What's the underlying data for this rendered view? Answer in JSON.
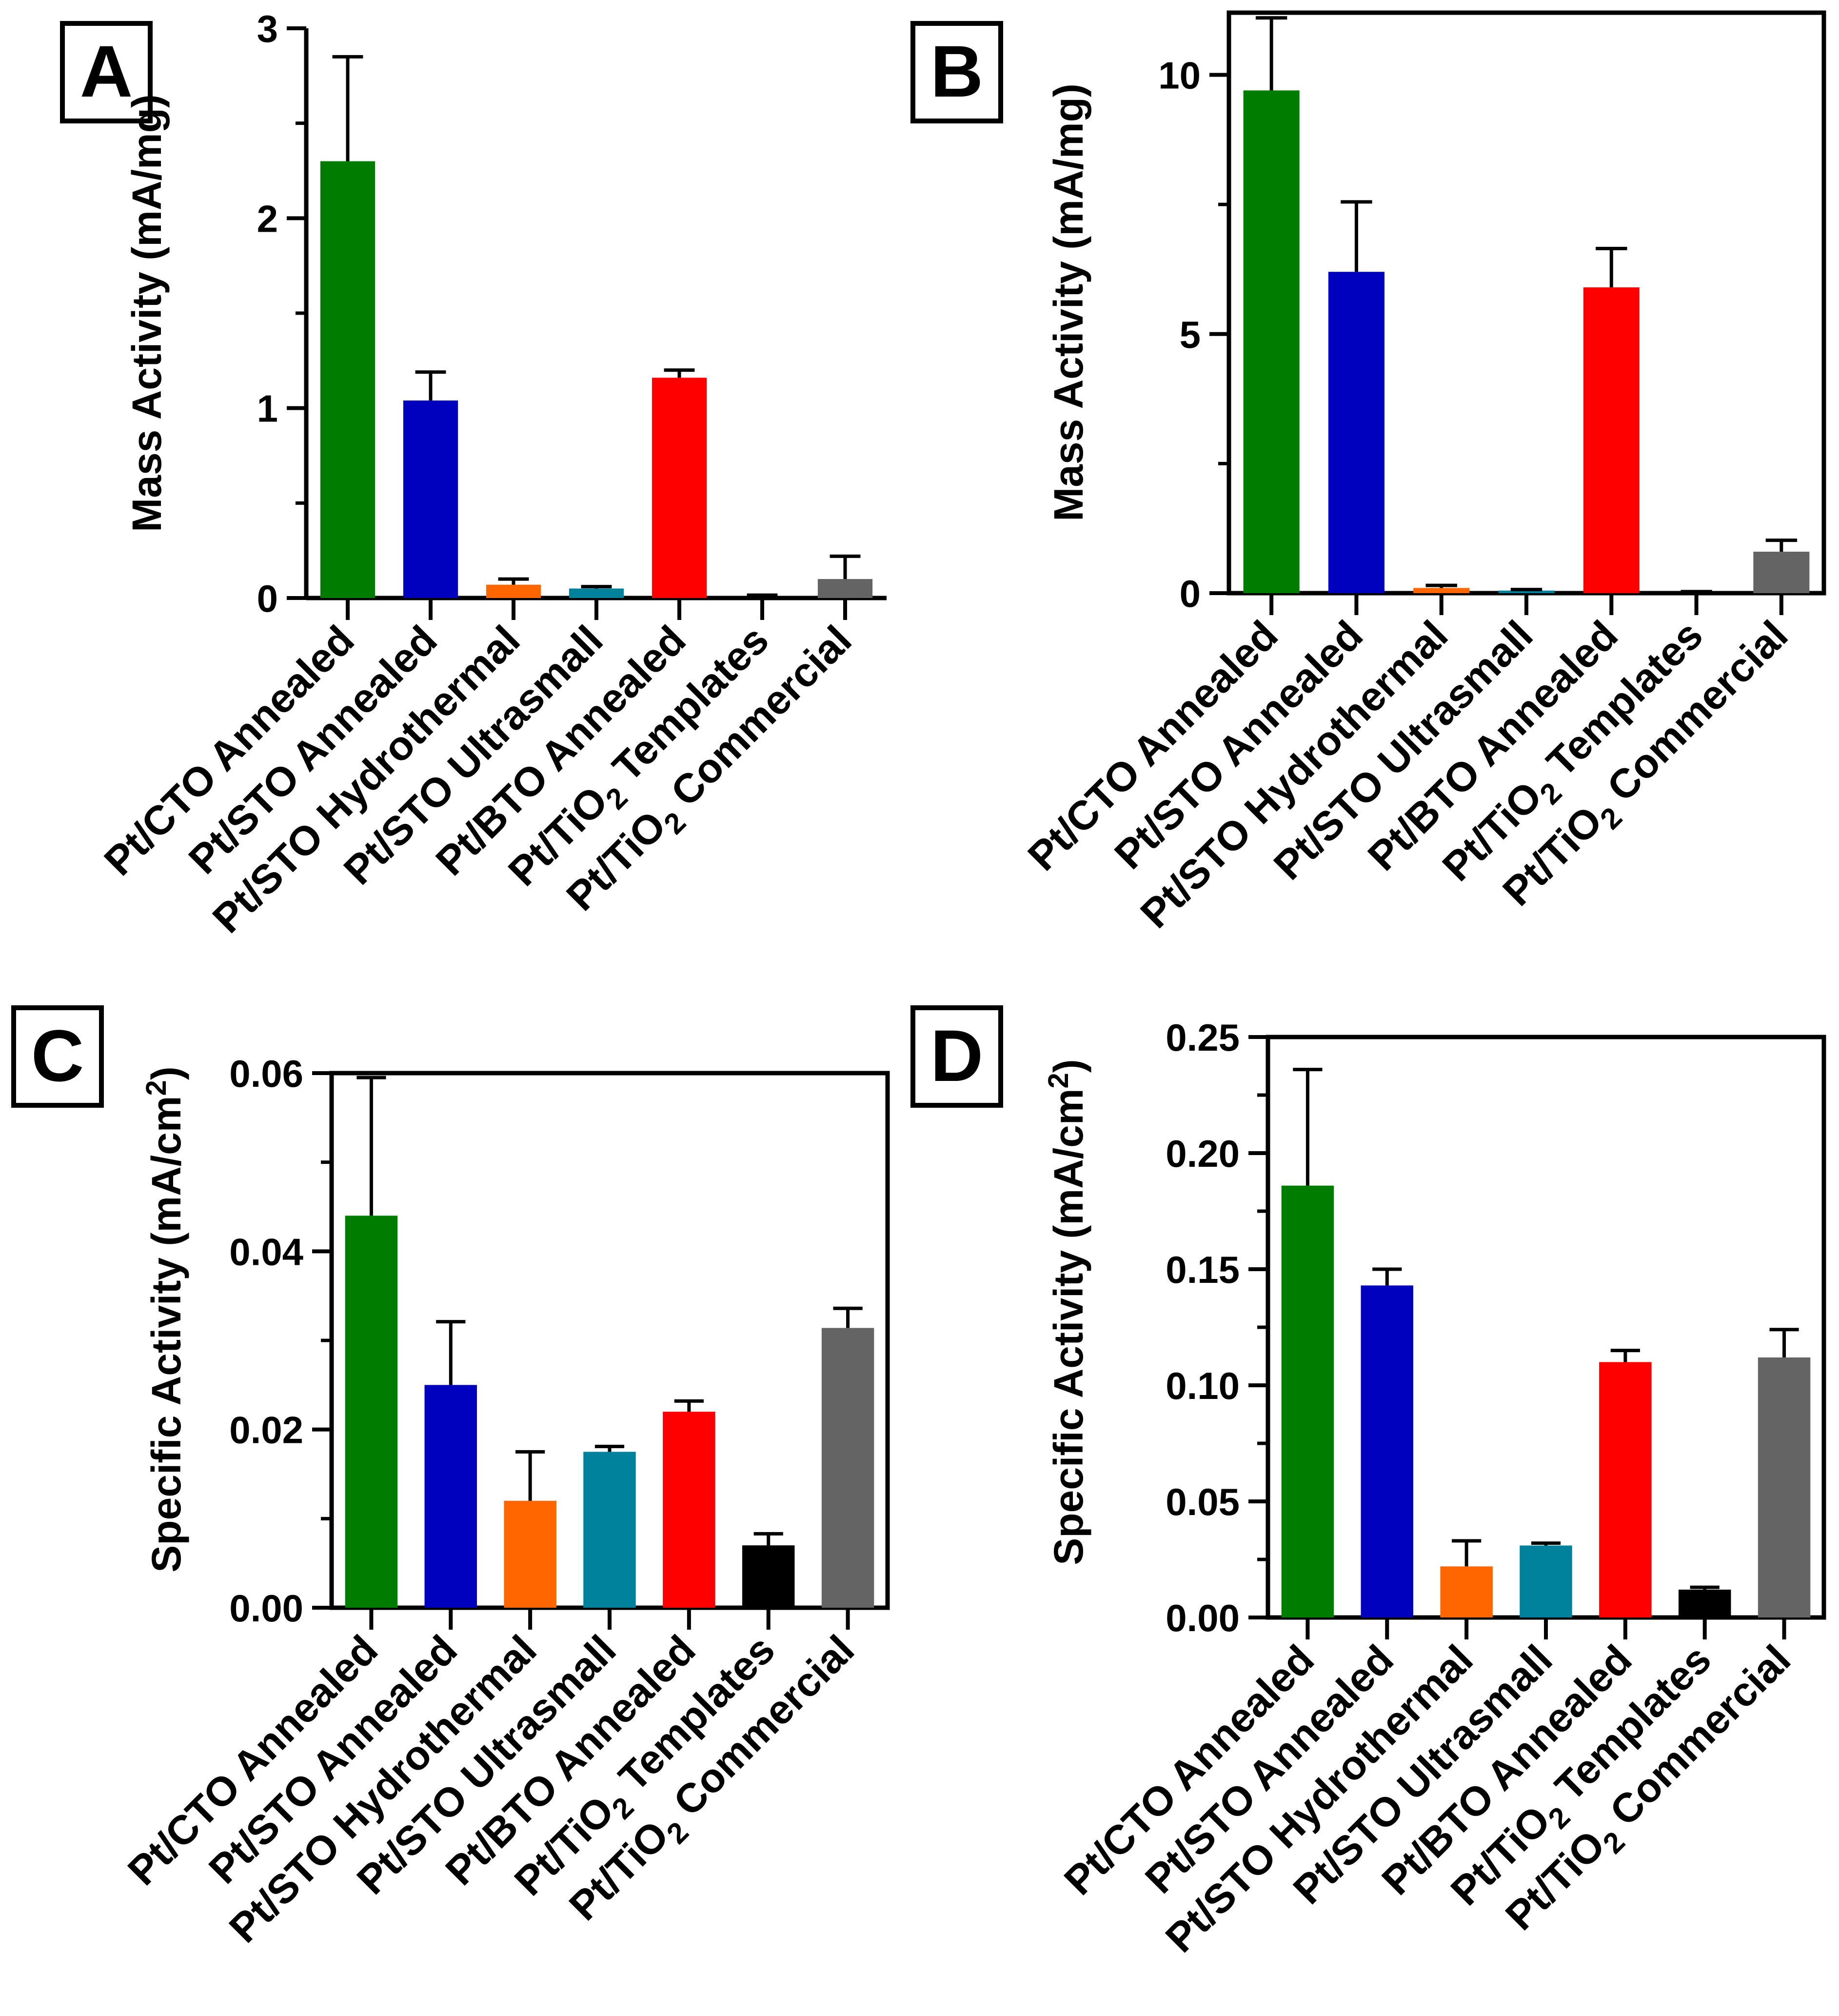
{
  "figure": {
    "panels": [
      "A",
      "B",
      "C",
      "D"
    ]
  },
  "colors": {
    "Pt/CTO Annealed": "#007d00",
    "Pt/STO Annealed": "#0000bf",
    "Pt/STO Hydrothermal": "#ff6600",
    "Pt/STO Ultrasmall": "#00829c",
    "Pt/BTO Annealed": "#ff0000",
    "Pt/TiO2 Templates": "#000000",
    "Pt/TiO2 Commercial": "#646464"
  },
  "category_labels": [
    {
      "main": "Pt/CTO Annealed",
      "sub": "",
      "tail": ""
    },
    {
      "main": "Pt/STO Annealed",
      "sub": "",
      "tail": ""
    },
    {
      "main": "Pt/STO Hydrothermal",
      "sub": "",
      "tail": ""
    },
    {
      "main": "Pt/STO Ultrasmall",
      "sub": "",
      "tail": ""
    },
    {
      "main": "Pt/BTO Annealed",
      "sub": "",
      "tail": ""
    },
    {
      "main": "Pt/TiO",
      "sub": "2",
      "tail": " Templates"
    },
    {
      "main": "Pt/TiO",
      "sub": "2",
      "tail": " Commercial"
    }
  ],
  "chart_data": [
    {
      "panel": "A",
      "type": "bar",
      "categories": [
        "Pt/CTO Annealed",
        "Pt/STO Annealed",
        "Pt/STO Hydrothermal",
        "Pt/STO Ultrasmall",
        "Pt/BTO Annealed",
        "Pt/TiO2 Templates",
        "Pt/TiO2 Commercial"
      ],
      "values": [
        2.3,
        1.04,
        0.07,
        0.05,
        1.16,
        0.01,
        0.1
      ],
      "errors": [
        0.55,
        0.15,
        0.03,
        0.01,
        0.04,
        0.005,
        0.12
      ],
      "ylabel": "Mass Activity (mA/mg)",
      "ylabel_sup": "",
      "ylabel_tail": "",
      "ylim": [
        0,
        3
      ],
      "major_ticks": [
        0,
        1,
        2,
        3
      ],
      "tick_labels": [
        "0",
        "1",
        "2",
        "3"
      ],
      "minor_step": 0.5,
      "frame": "axes"
    },
    {
      "panel": "B",
      "type": "bar",
      "categories": [
        "Pt/CTO Annealed",
        "Pt/STO Annealed",
        "Pt/STO Hydrothermal",
        "Pt/STO Ultrasmall",
        "Pt/BTO Annealed",
        "Pt/TiO2 Templates",
        "Pt/TiO2 Commercial"
      ],
      "values": [
        9.7,
        6.2,
        0.1,
        0.05,
        5.9,
        0.02,
        0.8
      ],
      "errors": [
        1.4,
        1.35,
        0.05,
        0.02,
        0.75,
        0.01,
        0.22
      ],
      "ylabel": "Mass Activity (mA/mg)",
      "ylabel_sup": "",
      "ylabel_tail": "",
      "ylim": [
        0,
        11.2
      ],
      "major_ticks": [
        0,
        5,
        10
      ],
      "tick_labels": [
        "0",
        "5",
        "10"
      ],
      "minor_step": 2.5,
      "frame": "box"
    },
    {
      "panel": "C",
      "type": "bar",
      "categories": [
        "Pt/CTO Annealed",
        "Pt/STO Annealed",
        "Pt/STO Hydrothermal",
        "Pt/STO Ultrasmall",
        "Pt/BTO Annealed",
        "Pt/TiO2 Templates",
        "Pt/TiO2 Commercial"
      ],
      "values": [
        0.044,
        0.025,
        0.012,
        0.0175,
        0.022,
        0.007,
        0.0314
      ],
      "errors": [
        0.0155,
        0.0071,
        0.0055,
        0.0006,
        0.0012,
        0.0013,
        0.0022
      ],
      "ylabel": "Specific Activity (mA/cm",
      "ylabel_sup": "2",
      "ylabel_tail": ")",
      "ylim": [
        0,
        0.06
      ],
      "major_ticks": [
        0,
        0.02,
        0.04,
        0.06
      ],
      "tick_labels": [
        "0.00",
        "0.02",
        "0.04",
        "0.06"
      ],
      "minor_step": 0.01,
      "frame": "box"
    },
    {
      "panel": "D",
      "type": "bar",
      "categories": [
        "Pt/CTO Annealed",
        "Pt/STO Annealed",
        "Pt/STO Hydrothermal",
        "Pt/STO Ultrasmall",
        "Pt/BTO Annealed",
        "Pt/TiO2 Templates",
        "Pt/TiO2 Commercial"
      ],
      "values": [
        0.186,
        0.143,
        0.022,
        0.031,
        0.11,
        0.012,
        0.112
      ],
      "errors": [
        0.05,
        0.007,
        0.011,
        0.001,
        0.005,
        0.001,
        0.012
      ],
      "ylabel": "Specific Activity (mA/cm",
      "ylabel_sup": "2",
      "ylabel_tail": ")",
      "ylim": [
        0,
        0.25
      ],
      "major_ticks": [
        0,
        0.05,
        0.1,
        0.15,
        0.2,
        0.25
      ],
      "tick_labels": [
        "0.00",
        "0.05",
        "0.10",
        "0.15",
        "0.20",
        "0.25"
      ],
      "minor_step": 0.025,
      "frame": "box"
    }
  ]
}
